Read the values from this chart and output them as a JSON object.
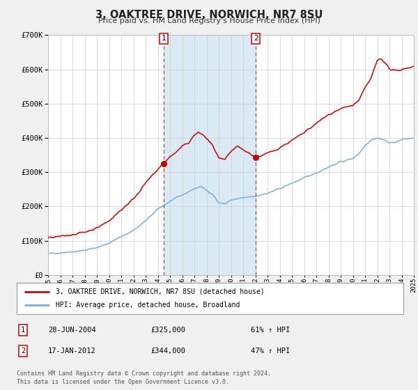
{
  "title": "3, OAKTREE DRIVE, NORWICH, NR7 8SU",
  "subtitle": "Price paid vs. HM Land Registry's House Price Index (HPI)",
  "legend_line1": "3, OAKTREE DRIVE, NORWICH, NR7 8SU (detached house)",
  "legend_line2": "HPI: Average price, detached house, Broadland",
  "sale1_label": "1",
  "sale1_date": "28-JUN-2004",
  "sale1_price": "£325,000",
  "sale1_hpi": "61% ↑ HPI",
  "sale2_label": "2",
  "sale2_date": "17-JAN-2012",
  "sale2_price": "£344,000",
  "sale2_hpi": "47% ↑ HPI",
  "footer1": "Contains HM Land Registry data © Crown copyright and database right 2024.",
  "footer2": "This data is licensed under the Open Government Licence v3.0.",
  "hpi_color": "#7aaed6",
  "price_color": "#cc0000",
  "sale_marker_color": "#cc0000",
  "shaded_color": "#daeaf5",
  "grid_color": "#cccccc",
  "background_color": "#f0f0f0",
  "plot_bg_color": "#ffffff",
  "ylim": [
    0,
    700000
  ],
  "yticks": [
    0,
    100000,
    200000,
    300000,
    400000,
    500000,
    600000,
    700000
  ],
  "sale1_x": 2004.49,
  "sale1_y": 325000,
  "sale2_x": 2012.04,
  "sale2_y": 344000,
  "vline1_x": 2004.49,
  "vline2_x": 2012.04,
  "shade_x1": 2004.49,
  "shade_x2": 2012.04,
  "xmin": 1995,
  "xmax": 2025
}
